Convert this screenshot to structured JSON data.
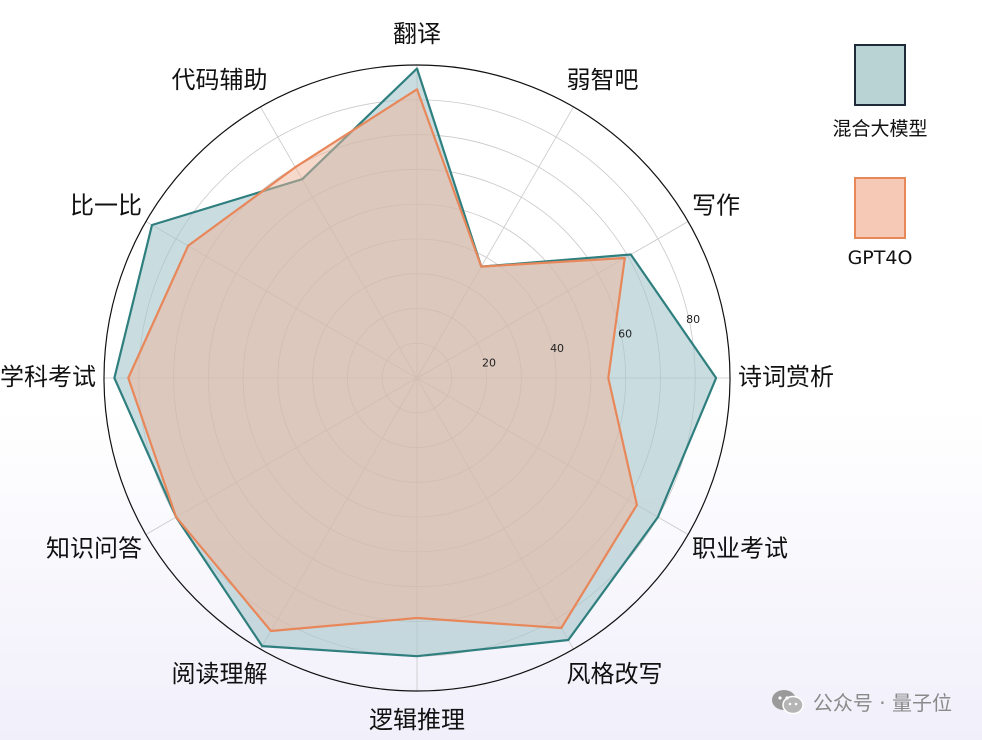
{
  "chart_data": {
    "type": "radar",
    "categories": [
      "翻译",
      "弱智吧",
      "写作",
      "诗词赏析",
      "职业考试",
      "风格改写",
      "逻辑推理",
      "阅读理解",
      "知识问答",
      "学科考试",
      "比一比",
      "代码辅助"
    ],
    "rmax": 90,
    "rticks": [
      20,
      40,
      60,
      80
    ],
    "grid": true,
    "legend_position": "right",
    "series": [
      {
        "name": "混合大模型",
        "values": [
          89,
          37,
          71,
          86,
          80,
          87,
          80,
          89,
          80,
          87,
          88,
          66
        ],
        "color": "#2f7f7f",
        "fill": "#a8c7cb"
      },
      {
        "name": "GPT4O",
        "values": [
          83,
          37,
          69,
          55,
          73,
          83,
          69,
          84,
          80,
          83,
          76,
          70
        ],
        "color": "#e8875a",
        "fill": "#efb49a"
      }
    ]
  },
  "legend": {
    "items": [
      {
        "label": "混合大模型",
        "fill": "#b9d3d4",
        "border": "#1f2a3a"
      },
      {
        "label": "GPT4O",
        "fill": "#f5c9b6",
        "border": "#e8875a"
      }
    ]
  },
  "watermark": {
    "text": "公众号 · 量子位",
    "icon": "wechat-icon"
  }
}
